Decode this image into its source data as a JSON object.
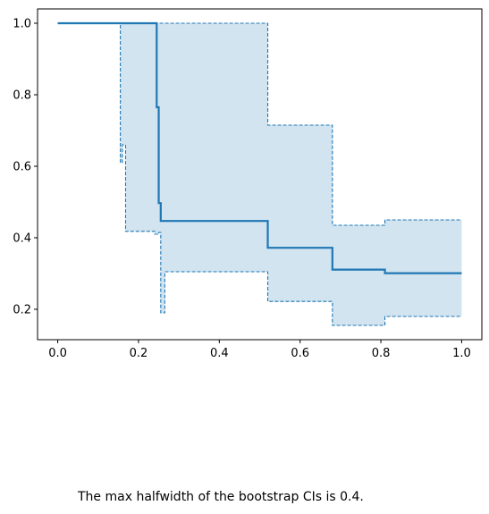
{
  "chart_data": {
    "type": "line",
    "title": "",
    "xlabel": "",
    "ylabel": "",
    "xlim": [
      -0.05,
      1.05
    ],
    "ylim": [
      0.115,
      1.04
    ],
    "grid": false,
    "x_ticks": [
      0.0,
      0.2,
      0.4,
      0.6,
      0.8,
      1.0
    ],
    "x_tick_labels": [
      "0.0",
      "0.2",
      "0.4",
      "0.6",
      "0.8",
      "1.0"
    ],
    "y_ticks": [
      0.2,
      0.4,
      0.6,
      0.8,
      1.0
    ],
    "y_tick_labels": [
      "0.2",
      "0.4",
      "0.6",
      "0.8",
      "1.0"
    ],
    "colors": {
      "line": "#1f77b4",
      "band_fill": "#1f77b4",
      "band_opacity": 0.2
    },
    "series": [
      {
        "style": "step-post",
        "x": [
          0.0,
          0.245,
          0.25,
          0.255,
          0.265,
          0.52,
          0.68,
          0.81,
          1.0
        ],
        "y": [
          1.0,
          0.765,
          0.497,
          0.447,
          0.447,
          0.372,
          0.311,
          0.301,
          0.301
        ]
      }
    ],
    "confidence_band": {
      "x": [
        0.0,
        0.155,
        0.16,
        0.168,
        0.24,
        0.25,
        0.255,
        0.265,
        0.52,
        0.68,
        0.81,
        1.0
      ],
      "upper": [
        1.0,
        1.0,
        1.0,
        1.0,
        1.0,
        1.0,
        1.0,
        1.0,
        0.715,
        0.435,
        0.45,
        0.45
      ],
      "lower": [
        1.0,
        0.61,
        0.66,
        0.418,
        0.41,
        0.415,
        0.19,
        0.305,
        0.222,
        0.155,
        0.18,
        0.18
      ]
    }
  },
  "caption": "The max halfwidth of the bootstrap CIs is 0.4."
}
